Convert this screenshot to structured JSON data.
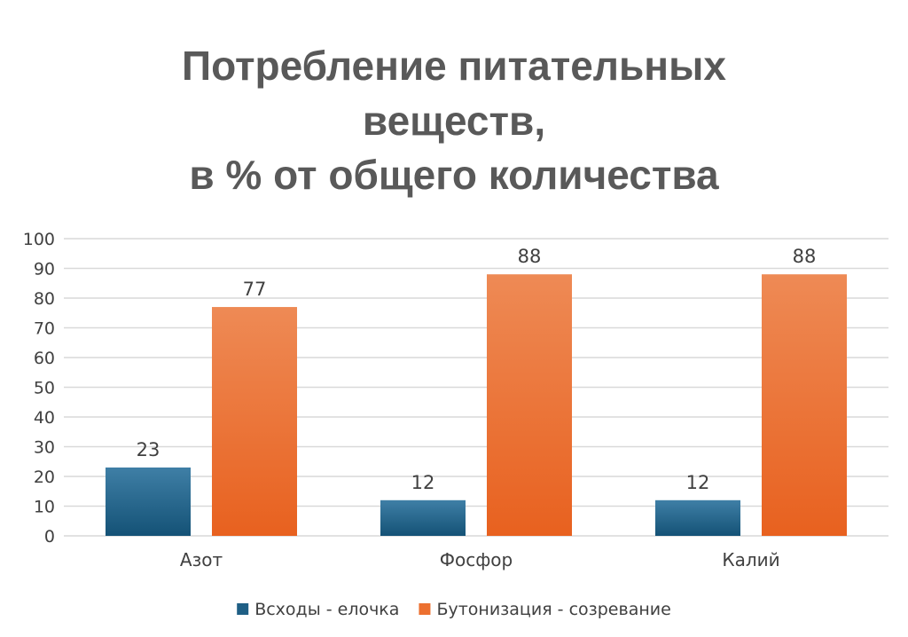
{
  "chart_data": {
    "type": "bar",
    "title_lines": [
      "Потребление питательных",
      "веществ,",
      "в % от общего количества"
    ],
    "title": "Потребление питательных веществ, в % от общего количества",
    "categories": [
      "Азот",
      "Фосфор",
      "Калий"
    ],
    "series": [
      {
        "name": "Всходы - елочка",
        "values": [
          23,
          12,
          12
        ],
        "color": "#1f5f85"
      },
      {
        "name": "Бутонизация - созревание",
        "values": [
          77,
          88,
          88
        ],
        "color": "#ec7030"
      }
    ],
    "ylim": [
      0,
      100
    ],
    "yticks": [
      0,
      10,
      20,
      30,
      40,
      50,
      60,
      70,
      80,
      90,
      100
    ],
    "grid": true,
    "legend_position": "bottom",
    "data_labels": true
  }
}
